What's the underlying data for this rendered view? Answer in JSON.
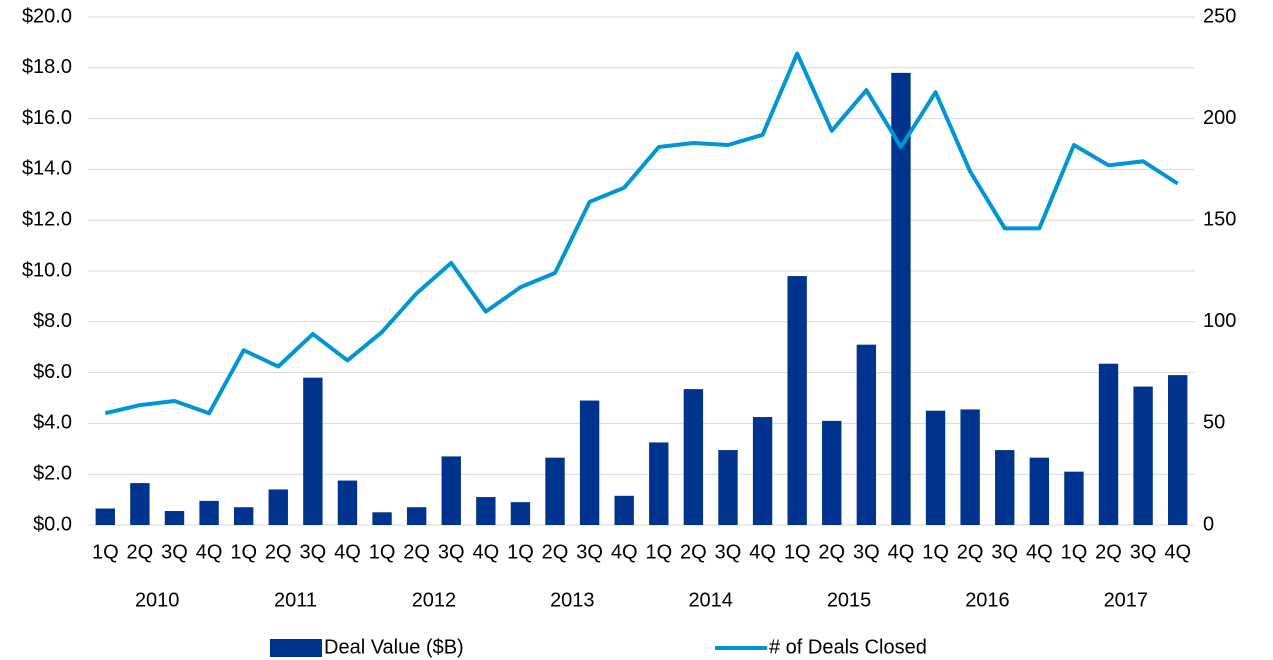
{
  "chart_data": {
    "type": "bar_line",
    "categories": [
      "1Q",
      "2Q",
      "3Q",
      "4Q",
      "1Q",
      "2Q",
      "3Q",
      "4Q",
      "1Q",
      "2Q",
      "3Q",
      "4Q",
      "1Q",
      "2Q",
      "3Q",
      "4Q",
      "1Q",
      "2Q",
      "3Q",
      "4Q",
      "1Q",
      "2Q",
      "3Q",
      "4Q",
      "1Q",
      "2Q",
      "3Q",
      "4Q",
      "1Q",
      "2Q",
      "3Q",
      "4Q"
    ],
    "years": [
      "2010",
      "2011",
      "2012",
      "2013",
      "2014",
      "2015",
      "2016",
      "2017"
    ],
    "series": [
      {
        "name": "Deal Value ($B)",
        "color": "#00338d",
        "type": "bar",
        "values": [
          0.65,
          1.65,
          0.55,
          0.95,
          0.7,
          1.4,
          5.8,
          1.75,
          0.5,
          0.7,
          2.7,
          1.1,
          0.9,
          2.65,
          4.9,
          1.15,
          3.25,
          5.35,
          2.95,
          4.25,
          9.8,
          4.1,
          7.1,
          17.8,
          4.5,
          4.55,
          2.95,
          2.65,
          2.1,
          6.35,
          5.45,
          5.9
        ]
      },
      {
        "name": "# of Deals Closed",
        "color": "#0096d6",
        "type": "line",
        "axis": "y2",
        "values": [
          55,
          59,
          61,
          55,
          86,
          78,
          94,
          81,
          95,
          114,
          129,
          105,
          117,
          124,
          159,
          166,
          186,
          188,
          187,
          192,
          232,
          194,
          214,
          186,
          213,
          174,
          146,
          146,
          187,
          177,
          179,
          168
        ]
      }
    ],
    "ylim": [
      0,
      20
    ],
    "yticks": [
      {
        "value": 0,
        "label": "$0.0"
      },
      {
        "value": 2,
        "label": "$2.0"
      },
      {
        "value": 4,
        "label": "$4.0"
      },
      {
        "value": 6,
        "label": "$6.0"
      },
      {
        "value": 8,
        "label": "$8.0"
      },
      {
        "value": 10,
        "label": "$10.0"
      },
      {
        "value": 12,
        "label": "$12.0"
      },
      {
        "value": 14,
        "label": "$14.0"
      },
      {
        "value": 16,
        "label": "$16.0"
      },
      {
        "value": 18,
        "label": "$18.0"
      },
      {
        "value": 20,
        "label": "$20.0"
      }
    ],
    "y2lim": [
      0,
      250
    ],
    "y2ticks": [
      0,
      50,
      100,
      150,
      200,
      250
    ],
    "grid": true,
    "legend": "bottom"
  }
}
